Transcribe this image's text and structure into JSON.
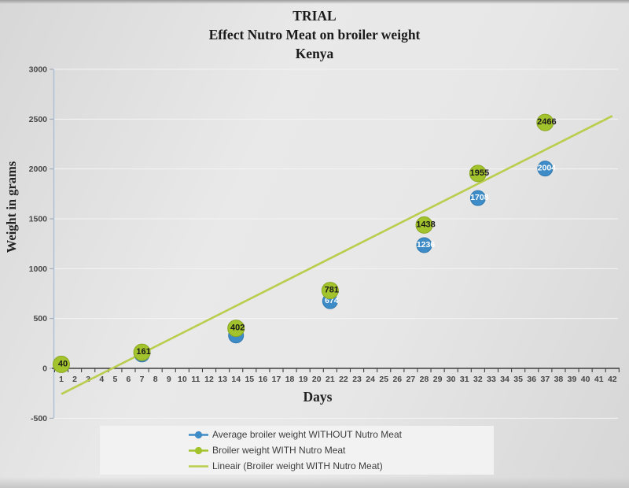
{
  "chart_data": {
    "type": "scatter",
    "title_lines": [
      "TRIAL",
      "Effect Nutro Meat on broiler weight",
      "Kenya"
    ],
    "xlabel": "Days",
    "ylabel": "Weight in grams",
    "xaxis": {
      "min": 1,
      "max": 42,
      "step": 1
    },
    "yaxis": {
      "min": -500,
      "max": 3000,
      "step": 500
    },
    "grid": true,
    "legend_position": "bottom",
    "series": [
      {
        "name": "Average broiler weight WITHOUT Nutro Meat",
        "color": "#3e8cc7",
        "edge_color": "#2f79b0",
        "label_color": "#ffffff",
        "marker_radius": 9.5,
        "points": [
          {
            "day": 7,
            "weight": 140,
            "label": ""
          },
          {
            "day": 14,
            "weight": 330,
            "label": ""
          },
          {
            "day": 21,
            "weight": 674,
            "label": "674"
          },
          {
            "day": 28,
            "weight": 1236,
            "label": "1236"
          },
          {
            "day": 32,
            "weight": 1708,
            "label": "1708"
          },
          {
            "day": 37,
            "weight": 2004,
            "label": "2004"
          }
        ]
      },
      {
        "name": "Broiler weight WITH Nutro Meat",
        "color": "#a3c32d",
        "edge_color": "#8aa723",
        "label_color": "#1a1a1a",
        "marker_radius": 10.5,
        "points": [
          {
            "day": 1,
            "weight": 40,
            "label": "40"
          },
          {
            "day": 7,
            "weight": 161,
            "label": "161"
          },
          {
            "day": 14,
            "weight": 402,
            "label": "402"
          },
          {
            "day": 21,
            "weight": 781,
            "label": "781"
          },
          {
            "day": 28,
            "weight": 1438,
            "label": "1438"
          },
          {
            "day": 32,
            "weight": 1955,
            "label": "1955"
          },
          {
            "day": 37,
            "weight": 2466,
            "label": "2466"
          }
        ]
      }
    ],
    "trendline": {
      "name": "Lineair (Broiler weight WITH Nutro Meat)",
      "color": "#bacd4c",
      "x_start": 1,
      "y_start": -258,
      "x_end": 42,
      "y_end": 2532
    },
    "axis_colors": {
      "x_axis_line": "#3f3f3f",
      "y_axis_line": "#a8bdd2",
      "tick_label": "#474747",
      "gridline": "#f4f4f4"
    }
  }
}
